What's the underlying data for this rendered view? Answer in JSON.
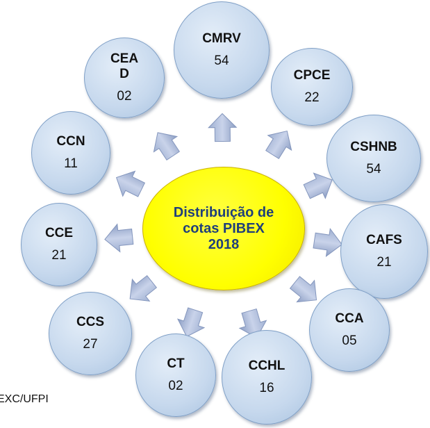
{
  "center": {
    "title": "Distribuição de cotas PIBEX 2018"
  },
  "nodes": [
    {
      "label": "CEAD",
      "value": "02"
    },
    {
      "label": "CMRV",
      "value": "54"
    },
    {
      "label": "CPCE",
      "value": "22"
    },
    {
      "label": "CSHNB",
      "value": "54"
    },
    {
      "label": "CCN",
      "value": "11"
    },
    {
      "label": "CCE",
      "value": "21"
    },
    {
      "label": "CAFS",
      "value": "21"
    },
    {
      "label": "CCS",
      "value": "27"
    },
    {
      "label": "CCA",
      "value": "05"
    },
    {
      "label": "CT",
      "value": "02"
    },
    {
      "label": "CCHL",
      "value": "16"
    }
  ],
  "source": "EXC/UFPI"
}
